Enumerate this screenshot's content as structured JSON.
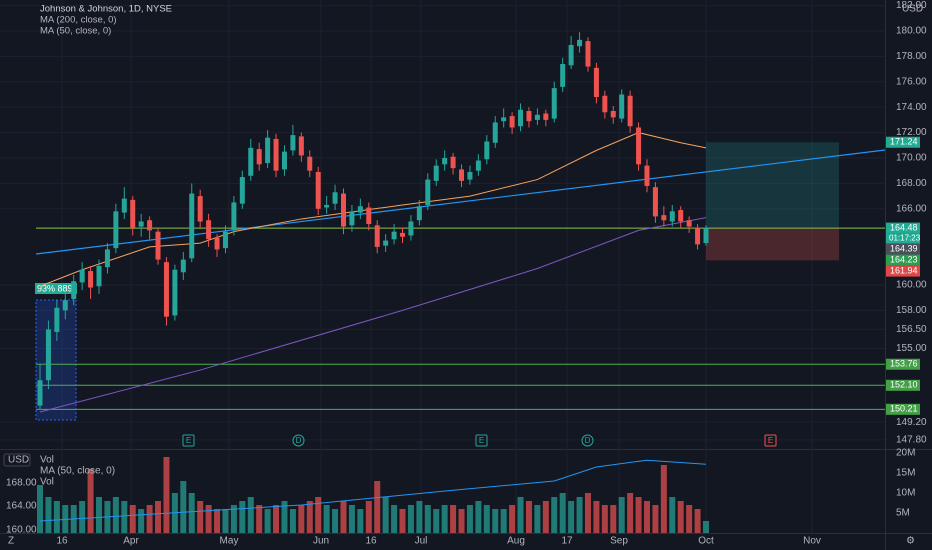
{
  "chart_data": {
    "type": "candlestick",
    "title": "Johnson & Johnson, 1D, NYSE",
    "currency": "USD",
    "indicators": [
      "MA (200, close, 0)",
      "MA (50, close, 0)"
    ],
    "up_color": "#26a69a",
    "down_color": "#ef5350",
    "ylim": [
      147.4,
      182.44
    ],
    "yticks": [
      {
        "value": 182,
        "label": "182.00"
      },
      {
        "value": 180,
        "label": "180.00"
      },
      {
        "value": 178,
        "label": "178.00"
      },
      {
        "value": 176,
        "label": "176.00"
      },
      {
        "value": 174,
        "label": "174.00"
      },
      {
        "value": 172,
        "label": "172.00"
      },
      {
        "value": 170,
        "label": "170.00"
      },
      {
        "value": 168,
        "label": "168.00"
      },
      {
        "value": 166,
        "label": "166.00"
      },
      {
        "value": 160,
        "label": "160.00"
      },
      {
        "value": 158,
        "label": "158.00"
      },
      {
        "value": 156.5,
        "label": "156.50"
      },
      {
        "value": 155,
        "label": "155.00"
      },
      {
        "value": 149.2,
        "label": "149.20"
      },
      {
        "value": 147.8,
        "label": "147.80"
      }
    ],
    "candles": [
      [
        150.5,
        153.8,
        150.2,
        152.5
      ],
      [
        152.5,
        157.2,
        151.8,
        156.5
      ],
      [
        156.3,
        158.8,
        155.6,
        158.2
      ],
      [
        158.0,
        159.5,
        157.3,
        158.8
      ],
      [
        158.9,
        160.8,
        158.4,
        160.3
      ],
      [
        160.2,
        161.8,
        159.6,
        161.2
      ],
      [
        161.1,
        161.5,
        158.9,
        159.8
      ],
      [
        159.9,
        162.0,
        159.3,
        161.5
      ],
      [
        161.4,
        163.3,
        160.9,
        162.8
      ],
      [
        162.9,
        166.4,
        162.5,
        165.8
      ],
      [
        165.7,
        167.7,
        165.2,
        166.8
      ],
      [
        166.7,
        167.0,
        163.9,
        164.5
      ],
      [
        164.6,
        165.6,
        163.8,
        165.0
      ],
      [
        165.1,
        165.4,
        163.6,
        164.3
      ],
      [
        164.2,
        164.5,
        161.6,
        162.0
      ],
      [
        161.8,
        162.2,
        156.8,
        157.5
      ],
      [
        157.6,
        161.6,
        157.2,
        161.2
      ],
      [
        161.0,
        162.6,
        160.4,
        162.0
      ],
      [
        162.1,
        168.0,
        161.8,
        167.2
      ],
      [
        167.0,
        167.5,
        164.5,
        165.0
      ],
      [
        165.1,
        165.6,
        163.0,
        163.6
      ],
      [
        163.7,
        164.0,
        162.2,
        162.8
      ],
      [
        162.9,
        164.7,
        162.5,
        164.2
      ],
      [
        164.3,
        167.0,
        163.9,
        166.5
      ],
      [
        166.4,
        169.0,
        166.0,
        168.5
      ],
      [
        168.6,
        171.5,
        168.2,
        170.8
      ],
      [
        170.7,
        171.2,
        169.0,
        169.5
      ],
      [
        169.6,
        172.2,
        169.2,
        171.6
      ],
      [
        171.5,
        171.9,
        168.5,
        169.0
      ],
      [
        169.1,
        171.0,
        168.6,
        170.5
      ],
      [
        170.6,
        172.6,
        170.2,
        171.8
      ],
      [
        171.7,
        172.0,
        169.7,
        170.2
      ],
      [
        170.1,
        170.6,
        168.5,
        169.0
      ],
      [
        168.9,
        169.3,
        165.5,
        166.0
      ],
      [
        166.1,
        167.0,
        165.6,
        166.3
      ],
      [
        166.4,
        167.9,
        165.9,
        167.3
      ],
      [
        167.2,
        167.6,
        164.0,
        164.6
      ],
      [
        164.7,
        166.3,
        164.2,
        165.8
      ],
      [
        165.7,
        166.8,
        165.2,
        166.2
      ],
      [
        166.1,
        166.5,
        164.3,
        164.8
      ],
      [
        164.7,
        165.1,
        162.5,
        163.0
      ],
      [
        163.1,
        164.0,
        162.6,
        163.5
      ],
      [
        163.6,
        164.8,
        163.2,
        164.2
      ],
      [
        164.1,
        164.5,
        163.3,
        163.8
      ],
      [
        163.9,
        165.5,
        163.5,
        165.0
      ],
      [
        165.1,
        166.7,
        164.7,
        166.2
      ],
      [
        166.3,
        168.8,
        165.9,
        168.3
      ],
      [
        168.2,
        169.9,
        167.8,
        169.4
      ],
      [
        169.5,
        170.6,
        169.0,
        170.0
      ],
      [
        170.1,
        170.4,
        168.7,
        169.2
      ],
      [
        169.1,
        169.5,
        167.7,
        168.2
      ],
      [
        168.3,
        169.4,
        167.9,
        168.9
      ],
      [
        169.0,
        170.3,
        168.6,
        169.8
      ],
      [
        169.9,
        171.8,
        169.5,
        171.3
      ],
      [
        171.2,
        173.3,
        170.8,
        172.8
      ],
      [
        172.9,
        173.9,
        172.4,
        173.2
      ],
      [
        173.3,
        173.6,
        171.9,
        172.4
      ],
      [
        172.5,
        174.3,
        172.1,
        173.8
      ],
      [
        173.7,
        174.0,
        172.4,
        172.9
      ],
      [
        173.0,
        173.9,
        172.6,
        173.4
      ],
      [
        173.5,
        173.8,
        172.5,
        173.0
      ],
      [
        173.1,
        176.0,
        172.8,
        175.5
      ],
      [
        175.6,
        177.9,
        175.2,
        177.4
      ],
      [
        177.3,
        179.6,
        177.0,
        178.9
      ],
      [
        178.8,
        179.9,
        178.3,
        179.3
      ],
      [
        179.2,
        179.5,
        176.8,
        177.2
      ],
      [
        177.1,
        177.5,
        174.3,
        174.8
      ],
      [
        174.9,
        175.3,
        173.1,
        173.6
      ],
      [
        173.7,
        174.1,
        172.7,
        173.2
      ],
      [
        173.1,
        175.4,
        172.8,
        175.0
      ],
      [
        174.9,
        175.3,
        172.0,
        172.5
      ],
      [
        172.4,
        172.8,
        169.0,
        169.5
      ],
      [
        169.4,
        169.9,
        167.3,
        167.8
      ],
      [
        167.7,
        168.1,
        164.9,
        165.4
      ],
      [
        165.5,
        166.2,
        164.6,
        165.1
      ],
      [
        165.0,
        166.3,
        164.6,
        165.8
      ],
      [
        165.9,
        166.2,
        164.5,
        165.0
      ],
      [
        165.1,
        165.4,
        164.1,
        164.6
      ],
      [
        164.5,
        164.8,
        162.8,
        163.2
      ],
      [
        163.3,
        164.7,
        163.1,
        164.48
      ]
    ],
    "ma200": {
      "color": "#7e57c2",
      "x": [
        0,
        19,
        43,
        59,
        71,
        79
      ],
      "values": [
        150.0,
        153.3,
        158.0,
        161.3,
        164.3,
        165.3
      ]
    },
    "ma50": {
      "color": "#f7a35c",
      "x": [
        0,
        5,
        13,
        19,
        23,
        31,
        43,
        51,
        59,
        66,
        71,
        76,
        79
      ],
      "values": [
        159.9,
        161.2,
        163.0,
        163.3,
        164.2,
        165.2,
        166.3,
        167.0,
        168.3,
        170.6,
        172.0,
        171.2,
        170.8
      ]
    },
    "price_labels": [
      {
        "value": 171.24,
        "color": "#22ab94"
      },
      {
        "value": 164.48,
        "color": "#22ab94",
        "line": true
      },
      {
        "value": 164.39,
        "color": "#4a4f5c"
      },
      {
        "value": 164.23,
        "color": "#2e9d4f"
      },
      {
        "value": 161.94,
        "color": "#e04848"
      },
      {
        "value": 153.76,
        "color": "#43a047",
        "line": true
      },
      {
        "value": 152.1,
        "label": "152.10",
        "color": "#43a047",
        "line": true
      },
      {
        "value": 150.21,
        "color": "#43a047",
        "line": true
      }
    ],
    "timer": "01:17:23",
    "range_label": "93% 889",
    "volume": {
      "title": "Vol",
      "ma_title": "MA (50, close, 0)",
      "sub_title": "Vol",
      "vlim": [
        0,
        20
      ],
      "yticks": [
        {
          "value": 20,
          "label": "20M"
        },
        {
          "value": 15,
          "label": "15M"
        },
        {
          "value": 10,
          "label": "10M"
        },
        {
          "value": 5,
          "label": "5M"
        }
      ],
      "left_labels": [
        "168.00",
        "164.00",
        "160.00"
      ],
      "unit_button": "USD",
      "values": [
        12,
        9,
        8,
        7,
        7,
        8,
        16,
        9,
        8,
        9,
        8,
        7,
        6,
        7,
        8,
        19,
        10,
        13,
        10,
        8,
        7,
        6,
        6,
        7,
        8,
        9,
        7,
        6,
        7,
        8,
        6,
        7,
        8,
        9,
        7,
        6,
        8,
        7,
        6,
        8,
        13,
        9,
        7,
        6,
        7,
        8,
        7,
        6,
        7,
        7,
        6,
        7,
        8,
        7,
        6,
        6,
        7,
        9,
        8,
        7,
        8,
        9,
        10,
        8,
        9,
        10,
        8,
        7,
        7,
        9,
        10,
        9,
        8,
        7,
        17,
        9,
        8,
        7,
        6,
        3
      ],
      "ma": {
        "color": "#2196f3",
        "x": [
          0,
          31,
          49,
          61,
          66,
          72,
          79
        ],
        "values": [
          3,
          7,
          10.7,
          13,
          16.5,
          18.2,
          17.2
        ]
      }
    },
    "events": [
      "E",
      "D",
      "E",
      "D",
      "E"
    ],
    "xlabels": [
      "16",
      "Apr",
      "May",
      "Jun",
      "16",
      "Jul",
      "Aug",
      "17",
      "Sep",
      "Oct",
      "Nov"
    ]
  }
}
